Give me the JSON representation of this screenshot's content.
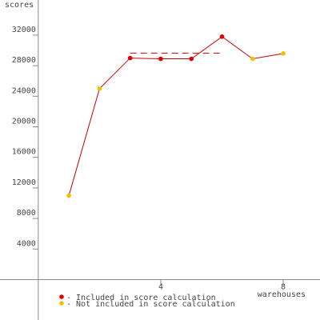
{
  "chart_data": {
    "type": "line",
    "y_label": "scores",
    "x_label": "warehouses",
    "x": [
      1,
      2,
      3,
      4,
      5,
      6,
      7,
      8
    ],
    "values": [
      11000,
      25000,
      29000,
      28900,
      28900,
      31800,
      28900,
      29600
    ],
    "included": [
      false,
      false,
      true,
      true,
      true,
      true,
      false,
      false
    ],
    "line_color": "#cc0000",
    "score_line": {
      "value": 29650,
      "from": 3,
      "to": 6,
      "color": "#cc0000"
    },
    "legend": [
      {
        "label": "- Included in score calculation",
        "color": "#dd0000"
      },
      {
        "label": "- Not included in score calculation",
        "color": "#f0c000"
      }
    ],
    "xlim": [
      -1.25,
      9.2
    ],
    "ylim": [
      -5290,
      36600
    ],
    "xticks": [
      4,
      8
    ],
    "yticks": [
      4000,
      8000,
      12000,
      16000,
      20000,
      24000,
      28000,
      32000
    ],
    "grid": false
  }
}
